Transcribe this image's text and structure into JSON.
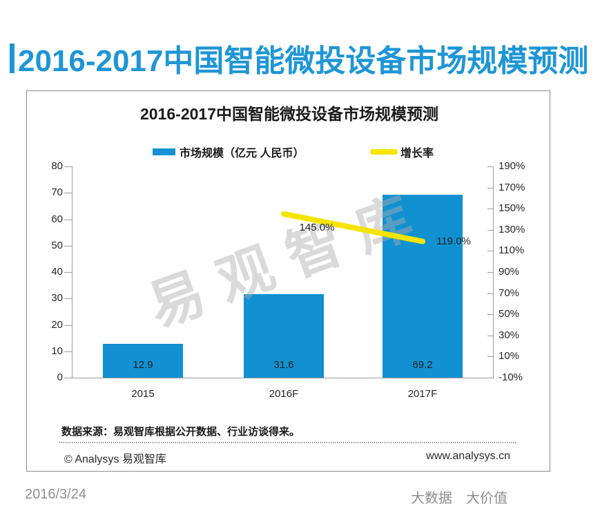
{
  "page_title": "2016-2017中国智能微投设备市场规模预测",
  "watermark": "易观智库",
  "panel": {
    "source_note": "数据来源：易观智库根据公开数据、行业访谈得来。",
    "copyright": "© Analysys 易观智库",
    "website": "www.analysys.cn"
  },
  "footer": {
    "date": "2016/3/24",
    "slogan": "大数据　大价值"
  },
  "colors": {
    "accent_blue": "#1e96d6",
    "bar_blue": "#1191d2",
    "line_yellow": "#f6e400"
  },
  "chart_data": {
    "type": "bar",
    "title": "2016-2017中国智能微投设备市场规模预测",
    "categories": [
      "2015",
      "2016F",
      "2017F"
    ],
    "series": [
      {
        "name": "市场规模（亿元 人民币）",
        "type": "bar",
        "axis": "left",
        "values": [
          12.9,
          31.6,
          69.2
        ],
        "value_labels": [
          "12.9",
          "31.6",
          "69.2"
        ],
        "color": "#1191d2"
      },
      {
        "name": "增长率",
        "type": "line",
        "axis": "right",
        "values": [
          null,
          145.0,
          119.0
        ],
        "value_labels": [
          "",
          "145.0%",
          "119.0%"
        ],
        "color": "#f6e400"
      }
    ],
    "left_axis": {
      "min": 0,
      "max": 80,
      "step": 10,
      "ticks": [
        "80",
        "70",
        "60",
        "50",
        "40",
        "30",
        "20",
        "10",
        "0"
      ]
    },
    "right_axis": {
      "min": -10,
      "max": 190,
      "step": 20,
      "ticks": [
        "190%",
        "170%",
        "150%",
        "130%",
        "110%",
        "90%",
        "70%",
        "50%",
        "30%",
        "10%",
        "-10%"
      ]
    },
    "legend_position": "top",
    "grid": false
  }
}
